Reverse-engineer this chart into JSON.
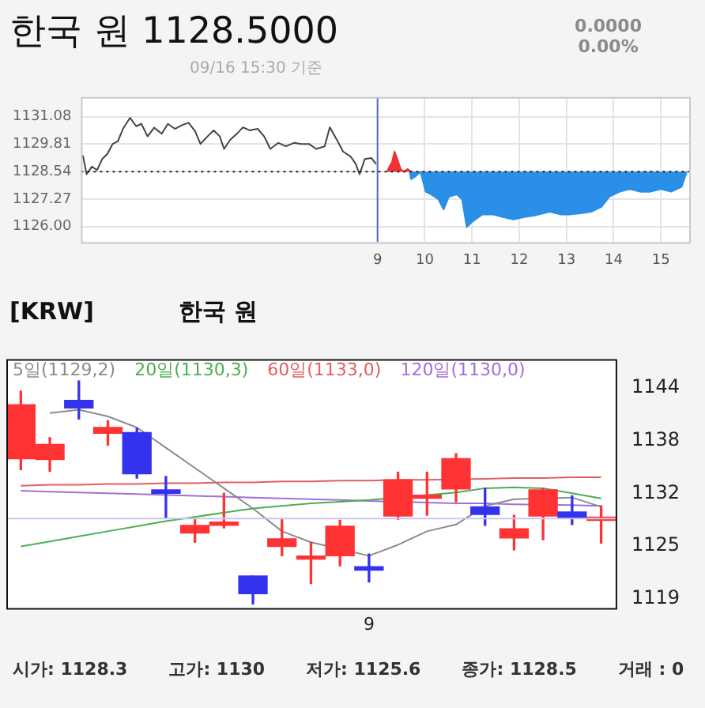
{
  "chart_data": [
    {
      "type": "line",
      "title": "한국 원 1128.5000",
      "subtitle": "09/16 15:30 기준",
      "annotations": [
        "0.0000",
        "0.00%"
      ],
      "xlim": [
        2.72,
        15.6
      ],
      "xticks": [
        9,
        10,
        11,
        12,
        13,
        14,
        15
      ],
      "ylim": [
        1125.28,
        1131.99
      ],
      "yticks": [
        {
          "value": 1126,
          "label": "1126.00"
        },
        {
          "value": 1127.27,
          "label": "1127.27"
        },
        {
          "value": 1128.54,
          "label": "1128.54"
        },
        {
          "value": 1129.81,
          "label": "1129.81"
        },
        {
          "value": 1131.08,
          "label": "1131.08"
        }
      ],
      "grid": true,
      "ref_lines": [
        {
          "axis": "y",
          "value": 1128.54,
          "color": "#222222",
          "line_style": "dotted"
        },
        {
          "axis": "x",
          "value": 9,
          "color": "#5a68c8",
          "line_style": "solid"
        }
      ],
      "series": [
        {
          "color": "#444444",
          "x": [
            2.76,
            2.84,
            2.95,
            3.06,
            3.17,
            3.28,
            3.39,
            3.5,
            3.61,
            3.76,
            3.89,
            4.0,
            4.13,
            4.27,
            4.43,
            4.56,
            4.71,
            4.85,
            5.0,
            5.14,
            5.25,
            5.4,
            5.53,
            5.66,
            5.75,
            5.88,
            6.02,
            6.15,
            6.29,
            6.46,
            6.6,
            6.73,
            6.9,
            7.06,
            7.23,
            7.39,
            7.55,
            7.7,
            7.88,
            7.99,
            8.13,
            8.27,
            8.43,
            8.54,
            8.62,
            8.73,
            8.87,
            8.97
          ],
          "values": [
            1129.29,
            1128.42,
            1128.77,
            1128.61,
            1129.12,
            1129.36,
            1129.82,
            1129.94,
            1130.52,
            1131.03,
            1130.64,
            1130.75,
            1130.17,
            1130.57,
            1130.29,
            1130.75,
            1130.52,
            1130.68,
            1130.8,
            1130.4,
            1129.82,
            1130.17,
            1130.45,
            1130.17,
            1129.59,
            1130.01,
            1130.29,
            1130.59,
            1130.45,
            1130.52,
            1130.17,
            1129.59,
            1129.87,
            1129.71,
            1129.87,
            1129.82,
            1129.82,
            1129.59,
            1129.71,
            1130.59,
            1130.05,
            1129.47,
            1129.24,
            1128.89,
            1128.42,
            1129.12,
            1129.17,
            1128.89
          ]
        },
        {
          "type": "area",
          "color": "#ee3333",
          "x": [
            9.2,
            9.31,
            9.36,
            9.42,
            9.49,
            9.56,
            9.64,
            9.71
          ],
          "values": [
            1128.54,
            1129.01,
            1129.47,
            1129.12,
            1128.66,
            1128.54,
            1128.66,
            1128.54
          ]
        },
        {
          "type": "area",
          "color": "#2a8fe6",
          "x": [
            9.68,
            9.71,
            9.8,
            9.91,
            10.02,
            10.13,
            10.29,
            10.4,
            10.51,
            10.68,
            10.79,
            10.89,
            11.0,
            11.22,
            11.44,
            11.66,
            11.88,
            12.1,
            12.32,
            12.65,
            12.87,
            13.09,
            13.3,
            13.52,
            13.74,
            13.91,
            14.13,
            14.34,
            14.56,
            14.78,
            15.0,
            15.22,
            15.44,
            15.55
          ],
          "values": [
            1128.54,
            1128.19,
            1128.31,
            1128.54,
            1127.61,
            1127.49,
            1127.26,
            1126.79,
            1127.38,
            1127.49,
            1127.26,
            1125.98,
            1126.21,
            1126.56,
            1126.56,
            1126.44,
            1126.33,
            1126.44,
            1126.51,
            1126.68,
            1126.56,
            1126.56,
            1126.61,
            1126.68,
            1126.91,
            1127.38,
            1127.61,
            1127.73,
            1127.61,
            1127.61,
            1127.73,
            1127.61,
            1127.84,
            1128.54
          ]
        }
      ]
    },
    {
      "type": "candlestick",
      "title": "[KRW]",
      "subtitle": "한국 원",
      "annotations": [
        "시가: 1128.3",
        "고가: 1130",
        "저가: 1125.6",
        "종가: 1128.5",
        "거래 : 0"
      ],
      "categories": [
        null,
        null,
        null,
        null,
        null,
        null,
        null,
        null,
        null,
        null,
        null,
        null,
        "9",
        null,
        null,
        null,
        null,
        null,
        null,
        null,
        null
      ],
      "ylim": [
        1117.9,
        1147.4
      ],
      "yticks": [
        {
          "value": 1119,
          "label": "1119"
        },
        {
          "value": 1125.25,
          "label": "1125"
        },
        {
          "value": 1131.5,
          "label": "1132"
        },
        {
          "value": 1137.75,
          "label": "1138"
        },
        1144
      ],
      "legend": "top left",
      "ref_lines": [
        {
          "axis": "y",
          "value": 1128.5,
          "color": "#c8c8f0",
          "line_style": "solid"
        }
      ],
      "ohlc": [
        [
          1135.6,
          1143.6,
          1134.3,
          1142.0
        ],
        [
          1135.5,
          1138.1,
          1134.1,
          1137.3
        ],
        [
          1142.5,
          1144.8,
          1140.3,
          1141.6
        ],
        [
          1138.6,
          1140.1,
          1137.2,
          1139.3
        ],
        [
          1138.7,
          1139.2,
          1133.3,
          1133.8
        ],
        [
          1131.9,
          1133.5,
          1128.5,
          1131.5
        ],
        [
          1126.8,
          1128.4,
          1125.7,
          1127.7
        ],
        [
          1127.7,
          1131.5,
          1127.4,
          1128.1
        ],
        [
          1121.7,
          1121.7,
          1118.4,
          1119.6
        ],
        [
          1125.2,
          1128.5,
          1124.1,
          1126.1
        ],
        [
          1123.7,
          1125.7,
          1120.8,
          1124.0
        ],
        [
          1124.1,
          1128.3,
          1122.9,
          1127.6
        ],
        [
          1122.8,
          1124.3,
          1121.0,
          1122.4
        ],
        [
          1128.8,
          1134.0,
          1128.4,
          1133.1
        ],
        [
          1130.9,
          1134.0,
          1128.9,
          1131.2
        ],
        [
          1132.0,
          1136.2,
          1130.5,
          1135.6
        ],
        [
          1129.9,
          1132.1,
          1127.7,
          1129.0
        ],
        [
          1126.2,
          1128.9,
          1124.8,
          1127.3
        ],
        [
          1128.8,
          1132.1,
          1126.0,
          1131.9
        ],
        [
          1129.3,
          1131.2,
          1127.8,
          1128.5
        ],
        [
          1128.3,
          1130,
          1125.6,
          1128.5
        ]
      ],
      "colors": [
        "#ff3333",
        "#ff3333",
        "#3333ee",
        "#ff3333",
        "#3333ee",
        "#3333ee",
        "#ff3333",
        "#ff3333",
        "#3333ee",
        "#ff3333",
        "#ff3333",
        "#ff3333",
        "#3333ee",
        "#ff3333",
        "#ff3333",
        "#ff3333",
        "#3333ee",
        "#ff3333",
        "#ff3333",
        "#3333ee",
        "#ff3333"
      ],
      "series": [
        {
          "type": "line",
          "name": "5일(1129,2)",
          "color": "#8c8c8c",
          "values": [
            null,
            1141.0,
            1141.4,
            1140.6,
            1139.3,
            1136.9,
            1134.5,
            1132.1,
            1129.7,
            1127.0,
            1125.7,
            null,
            1124.1,
            1125.4,
            1127.0,
            1127.8,
            1130.0,
            1130.8,
            null,
            1131.0,
            1129.9
          ]
        },
        {
          "type": "line",
          "name": "20일(1130,3)",
          "color": "#4caf50",
          "values": [
            1125.2,
            1125.8,
            1126.4,
            1127.0,
            1127.6,
            1128.2,
            1128.7,
            1129.2,
            1129.7,
            1130.0,
            1130.3,
            1130.5,
            1130.7,
            null,
            1131.3,
            1131.6,
            1132.1,
            1132.2,
            1132.1,
            1131.5,
            1130.9
          ]
        },
        {
          "type": "line",
          "name": "60일(1133,0)",
          "color": "#e06060",
          "values": [
            1132.4,
            1132.5,
            1132.5,
            1132.6,
            1132.6,
            1132.7,
            1132.7,
            1132.8,
            1132.8,
            1132.9,
            1132.9,
            1133.0,
            1133.0,
            1133.1,
            1133.1,
            null,
            1133.2,
            1133.3,
            1133.3,
            1133.4,
            1133.4
          ]
        },
        {
          "type": "line",
          "name": "120일(1130,0)",
          "color": "#a070d8",
          "values": [
            1131.8,
            1131.7,
            1131.6,
            1131.5,
            1131.4,
            1131.3,
            1131.2,
            1131.1,
            1131.0,
            1130.9,
            1130.8,
            1130.7,
            1130.6,
            null,
            1130.4,
            1130.3,
            1130.3,
            1130.2,
            null,
            1130.1,
            1130.0
          ]
        }
      ]
    }
  ]
}
